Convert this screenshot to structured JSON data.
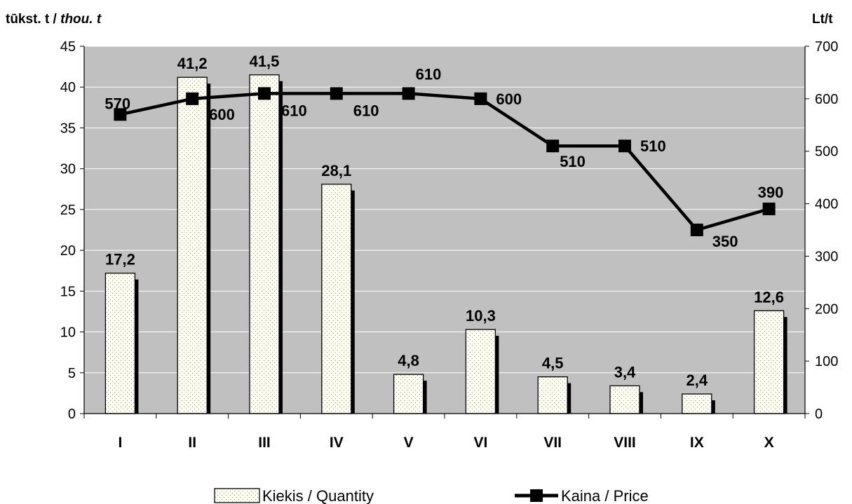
{
  "chart_data": {
    "type": "bar",
    "y_left_label": "tūkst. t /",
    "y_left_label_italic": "thou. t",
    "y_right_label": "Lt/t",
    "categories": [
      "I",
      "II",
      "III",
      "IV",
      "V",
      "VI",
      "VII",
      "VIII",
      "IX",
      "X"
    ],
    "series": [
      {
        "name": "Kiekis / Quantity",
        "type": "bar",
        "axis": "left",
        "values": [
          17.2,
          41.2,
          41.5,
          28.1,
          4.8,
          10.3,
          4.5,
          3.4,
          2.4,
          12.6
        ],
        "labels": [
          "17,2",
          "41,2",
          "41,5",
          "28,1",
          "4,8",
          "10,3",
          "4,5",
          "3,4",
          "2,4",
          "12,6"
        ]
      },
      {
        "name": "Kaina / Price",
        "type": "line",
        "axis": "right",
        "values": [
          570,
          600,
          610,
          610,
          610,
          600,
          510,
          510,
          350,
          390
        ],
        "labels": [
          "570",
          "600",
          "610",
          "610",
          "610",
          "600",
          "510",
          "510",
          "350",
          "390"
        ]
      }
    ],
    "y_left": {
      "min": 0,
      "max": 45,
      "step": 5,
      "tick_labels": [
        "0",
        "5",
        "10",
        "15",
        "20",
        "25",
        "30",
        "35",
        "40",
        "45"
      ]
    },
    "y_right": {
      "min": 0,
      "max": 700,
      "step": 100,
      "tick_labels": [
        "0",
        "100",
        "200",
        "300",
        "400",
        "500",
        "600",
        "700"
      ]
    },
    "grid": true,
    "plot_background": "#c0c0c0",
    "bar_fill": "#fffff0",
    "line_color": "#000000",
    "legend_position": "bottom"
  }
}
